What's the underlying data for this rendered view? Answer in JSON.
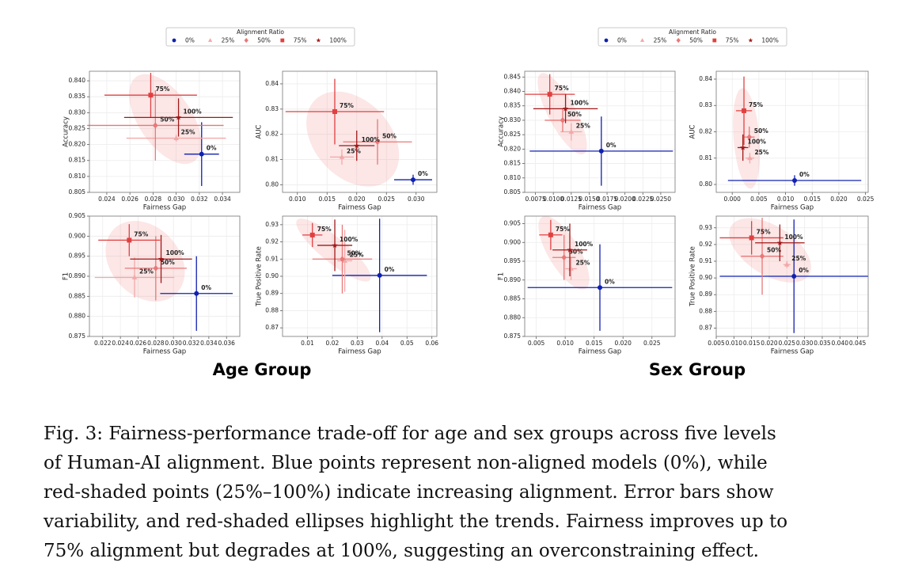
{
  "chart_data": [
    {
      "type": "scatter",
      "xlabel": "Fairness Gap",
      "ylabel": "Accuracy",
      "xlim": [
        0.0225,
        0.0355
      ],
      "xticks": [
        0.024,
        0.026,
        0.028,
        {
          "value": 0.03,
          "label": "0.030"
        },
        0.032,
        0.034
      ],
      "ylim": [
        0.805,
        0.843
      ],
      "yticks": [
        0.805,
        {
          "value": 0.81,
          "label": "0.810"
        },
        0.815,
        {
          "value": 0.82,
          "label": "0.820"
        },
        0.825,
        {
          "value": 0.83,
          "label": "0.830"
        },
        0.835,
        {
          "value": 0.84,
          "label": "0.840"
        }
      ],
      "grid": true,
      "series": [
        {
          "name": "0%",
          "color": "#1020b0",
          "marker": "circle",
          "x": [
            0.0322
          ],
          "values": [
            0.817
          ],
          "xerr": [
            0.0015
          ],
          "yerr": [
            0.01
          ]
        },
        {
          "name": "25%",
          "color": "#f2a8a8",
          "marker": "triangle",
          "x": [
            0.03
          ],
          "values": [
            0.822
          ],
          "xerr": [
            0.0043
          ],
          "yerr": [
            0.001
          ]
        },
        {
          "name": "50%",
          "color": "#e87878",
          "marker": "diamond",
          "x": [
            0.0282
          ],
          "values": [
            0.826
          ],
          "xerr": [
            0.0059
          ],
          "yerr": [
            0.011
          ]
        },
        {
          "name": "75%",
          "color": "#e04040",
          "marker": "square",
          "x": [
            0.0278
          ],
          "values": [
            0.8355
          ],
          "xerr": [
            0.004
          ],
          "yerr": [
            0.007
          ]
        },
        {
          "name": "100%",
          "color": "#a01818",
          "marker": "star",
          "x": [
            0.0302
          ],
          "values": [
            0.8285
          ],
          "xerr": [
            0.0047
          ],
          "yerr": [
            0.006
          ]
        }
      ]
    },
    {
      "type": "scatter",
      "xlabel": "Fairness Gap",
      "ylabel": "AUC",
      "xlim": [
        0.0075,
        0.0335
      ],
      "xticks": [
        {
          "value": 0.01,
          "label": "0.010"
        },
        0.015,
        {
          "value": 0.02,
          "label": "0.020"
        },
        0.025,
        {
          "value": 0.03,
          "label": "0.030"
        }
      ],
      "ylim": [
        0.797,
        0.845
      ],
      "yticks": [
        {
          "value": 0.8,
          "label": "0.80"
        },
        0.81,
        0.82,
        0.83,
        0.84
      ],
      "grid": true,
      "series": [
        {
          "name": "0%",
          "color": "#1020b0",
          "marker": "circle",
          "x": [
            0.0295
          ],
          "values": [
            0.802
          ],
          "xerr": [
            0.0032
          ],
          "yerr": [
            0.002
          ]
        },
        {
          "name": "25%",
          "color": "#f2a8a8",
          "marker": "triangle",
          "x": [
            0.0175
          ],
          "values": [
            0.811
          ],
          "xerr": [
            0.002
          ],
          "yerr": [
            0.003
          ]
        },
        {
          "name": "50%",
          "color": "#e87878",
          "marker": "diamond",
          "x": [
            0.0235
          ],
          "values": [
            0.817
          ],
          "xerr": [
            0.0058
          ],
          "yerr": [
            0.009
          ]
        },
        {
          "name": "75%",
          "color": "#e04040",
          "marker": "square",
          "x": [
            0.0163
          ],
          "values": [
            0.829
          ],
          "xerr": [
            0.0083
          ],
          "yerr": [
            0.013
          ]
        },
        {
          "name": "100%",
          "color": "#a01818",
          "marker": "star",
          "x": [
            0.02
          ],
          "values": [
            0.8155
          ],
          "xerr": [
            0.003
          ],
          "yerr": [
            0.006
          ]
        }
      ]
    },
    {
      "type": "scatter",
      "xlabel": "Fairness Gap",
      "ylabel": "F1",
      "xlim": [
        0.0205,
        0.0375
      ],
      "xticks": [
        0.022,
        0.024,
        0.026,
        0.028,
        {
          "value": 0.03,
          "label": "0.030"
        },
        0.032,
        0.034,
        0.036
      ],
      "ylim": [
        0.875,
        0.905
      ],
      "yticks": [
        0.875,
        {
          "value": 0.88,
          "label": "0.880"
        },
        0.885,
        {
          "value": 0.89,
          "label": "0.890"
        },
        0.895,
        {
          "value": 0.9,
          "label": "0.900"
        },
        0.905
      ],
      "grid": true,
      "series": [
        {
          "name": "0%",
          "color": "#1020b0",
          "marker": "circle",
          "x": [
            0.0326
          ],
          "values": [
            0.8857
          ],
          "xerr": [
            0.0041
          ],
          "yerr": [
            0.0093
          ]
        },
        {
          "name": "25%",
          "color": "#f2a8a8",
          "marker": "triangle",
          "x": [
            0.0256
          ],
          "values": [
            0.8897
          ],
          "xerr": [
            0.0045
          ],
          "yerr": [
            0.005
          ]
        },
        {
          "name": "50%",
          "color": "#e87878",
          "marker": "diamond",
          "x": [
            0.028
          ],
          "values": [
            0.892
          ],
          "xerr": [
            0.0035
          ],
          "yerr": [
            0.008
          ]
        },
        {
          "name": "75%",
          "color": "#e04040",
          "marker": "square",
          "x": [
            0.025
          ],
          "values": [
            0.899
          ],
          "xerr": [
            0.0035
          ],
          "yerr": [
            0.004
          ]
        },
        {
          "name": "100%",
          "color": "#a01818",
          "marker": "star",
          "x": [
            0.0286
          ],
          "values": [
            0.8943
          ],
          "xerr": [
            0.0035
          ],
          "yerr": [
            0.006
          ]
        }
      ]
    },
    {
      "type": "scatter",
      "xlabel": "Fairness Gap",
      "ylabel": "True Positive Rate",
      "xlim": [
        0.0,
        0.062
      ],
      "xticks": [
        0.01,
        0.02,
        0.03,
        0.04,
        0.05,
        0.06
      ],
      "ylim": [
        0.865,
        0.935
      ],
      "yticks": [
        0.87,
        0.88,
        0.89,
        {
          "value": 0.9,
          "label": "0.90"
        },
        0.91,
        0.92,
        0.93
      ],
      "grid": true,
      "series": [
        {
          "name": "0%",
          "color": "#1020b0",
          "marker": "circle",
          "x": [
            0.039
          ],
          "values": [
            0.9005
          ],
          "xerr": [
            0.019
          ],
          "yerr": [
            0.033
          ]
        },
        {
          "name": "25%",
          "color": "#f2a8a8",
          "marker": "triangle",
          "x": [
            0.025
          ],
          "values": [
            0.909
          ],
          "xerr": [
            0.003
          ],
          "yerr": [
            0.018
          ]
        },
        {
          "name": "50%",
          "color": "#e87878",
          "marker": "diamond",
          "x": [
            0.024
          ],
          "values": [
            0.91
          ],
          "xerr": [
            0.012
          ],
          "yerr": [
            0.02
          ]
        },
        {
          "name": "75%",
          "color": "#e04040",
          "marker": "square",
          "x": [
            0.012
          ],
          "values": [
            0.924
          ],
          "xerr": [
            0.004
          ],
          "yerr": [
            0.007
          ]
        },
        {
          "name": "100%",
          "color": "#a01818",
          "marker": "star",
          "x": [
            0.021
          ],
          "values": [
            0.918
          ],
          "xerr": [
            0.007
          ],
          "yerr": [
            0.015
          ]
        }
      ]
    },
    {
      "type": "scatter",
      "xlabel": "Fairness Gap",
      "ylabel": "Accuracy",
      "xlim": [
        0.006,
        0.027
      ],
      "xticks": [
        0.0075,
        {
          "value": 0.01,
          "label": "0.0100"
        },
        0.0125,
        {
          "value": 0.015,
          "label": "0.0150"
        },
        0.0175,
        {
          "value": 0.02,
          "label": "0.0200"
        },
        0.0225,
        {
          "value": 0.025,
          "label": "0.0250"
        }
      ],
      "ylim": [
        0.805,
        0.847
      ],
      "yticks": [
        0.805,
        {
          "value": 0.81,
          "label": "0.810"
        },
        0.815,
        {
          "value": 0.82,
          "label": "0.820"
        },
        0.825,
        {
          "value": 0.83,
          "label": "0.830"
        },
        0.835,
        {
          "value": 0.84,
          "label": "0.840"
        },
        0.845
      ],
      "grid": true,
      "series": [
        {
          "name": "0%",
          "color": "#1020b0",
          "marker": "circle",
          "x": [
            0.0167
          ],
          "values": [
            0.8193
          ],
          "xerr": [
            0.01
          ],
          "yerr": [
            0.012
          ]
        },
        {
          "name": "25%",
          "color": "#f2a8a8",
          "marker": "triangle",
          "x": [
            0.0125
          ],
          "values": [
            0.826
          ],
          "xerr": [
            0.0015
          ],
          "yerr": [
            0.003
          ]
        },
        {
          "name": "50%",
          "color": "#e87878",
          "marker": "diamond",
          "x": [
            0.0113
          ],
          "values": [
            0.83
          ],
          "xerr": [
            0.0025
          ],
          "yerr": [
            0.004
          ]
        },
        {
          "name": "75%",
          "color": "#e04040",
          "marker": "square",
          "x": [
            0.0095
          ],
          "values": [
            0.839
          ],
          "xerr": [
            0.0035
          ],
          "yerr": [
            0.007
          ]
        },
        {
          "name": "100%",
          "color": "#a01818",
          "marker": "star",
          "x": [
            0.0117
          ],
          "values": [
            0.834
          ],
          "xerr": [
            0.0045
          ],
          "yerr": [
            0.005
          ]
        }
      ]
    },
    {
      "type": "scatter",
      "xlabel": "Fairness Gap",
      "ylabel": "AUC",
      "xlim": [
        -0.003,
        0.0255
      ],
      "xticks": [
        {
          "value": 0,
          "label": "0.000"
        },
        0.005,
        {
          "value": 0.01,
          "label": "0.010"
        },
        0.015,
        {
          "value": 0.02,
          "label": "0.020"
        },
        0.025
      ],
      "ylim": [
        0.797,
        0.843
      ],
      "yticks": [
        {
          "value": 0.8,
          "label": "0.80"
        },
        0.81,
        0.82,
        0.83,
        0.84
      ],
      "grid": true,
      "series": [
        {
          "name": "0%",
          "color": "#1020b0",
          "marker": "circle",
          "x": [
            0.0117
          ],
          "values": [
            0.8015
          ],
          "xerr": [
            0.0125
          ],
          "yerr": [
            0.002
          ]
        },
        {
          "name": "25%",
          "color": "#f2a8a8",
          "marker": "triangle",
          "x": [
            0.0033
          ],
          "values": [
            0.81
          ],
          "xerr": [
            0.0008
          ],
          "yerr": [
            0.002
          ]
        },
        {
          "name": "50%",
          "color": "#e87878",
          "marker": "diamond",
          "x": [
            0.0032
          ],
          "values": [
            0.818
          ],
          "xerr": [
            0.001
          ],
          "yerr": [
            0.004
          ]
        },
        {
          "name": "75%",
          "color": "#e04040",
          "marker": "square",
          "x": [
            0.0022
          ],
          "values": [
            0.828
          ],
          "xerr": [
            0.0015
          ],
          "yerr": [
            0.013
          ]
        },
        {
          "name": "100%",
          "color": "#a01818",
          "marker": "star",
          "x": [
            0.002
          ],
          "values": [
            0.814
          ],
          "xerr": [
            0.001
          ],
          "yerr": [
            0.005
          ]
        }
      ]
    },
    {
      "type": "scatter",
      "xlabel": "Fairness Gap",
      "ylabel": "F1",
      "xlim": [
        0.003,
        0.029
      ],
      "xticks": [
        0.005,
        {
          "value": 0.01,
          "label": "0.010"
        },
        0.015,
        {
          "value": 0.02,
          "label": "0.020"
        },
        0.025
      ],
      "ylim": [
        0.875,
        0.907
      ],
      "yticks": [
        0.875,
        {
          "value": 0.88,
          "label": "0.880"
        },
        0.885,
        {
          "value": 0.89,
          "label": "0.890"
        },
        0.895,
        {
          "value": 0.9,
          "label": "0.900"
        },
        0.905
      ],
      "grid": true,
      "series": [
        {
          "name": "0%",
          "color": "#1020b0",
          "marker": "circle",
          "x": [
            0.016
          ],
          "values": [
            0.888
          ],
          "xerr": [
            0.0125
          ],
          "yerr": [
            0.0115
          ]
        },
        {
          "name": "25%",
          "color": "#f2a8a8",
          "marker": "triangle",
          "x": [
            0.011
          ],
          "values": [
            0.893
          ],
          "xerr": [
            0.001
          ],
          "yerr": [
            0.003
          ]
        },
        {
          "name": "50%",
          "color": "#e87878",
          "marker": "diamond",
          "x": [
            0.0098
          ],
          "values": [
            0.896
          ],
          "xerr": [
            0.002
          ],
          "yerr": [
            0.006
          ]
        },
        {
          "name": "75%",
          "color": "#e04040",
          "marker": "square",
          "x": [
            0.0075
          ],
          "values": [
            0.902
          ],
          "xerr": [
            0.002
          ],
          "yerr": [
            0.004
          ]
        },
        {
          "name": "100%",
          "color": "#a01818",
          "marker": "star",
          "x": [
            0.0108
          ],
          "values": [
            0.898
          ],
          "xerr": [
            0.003
          ],
          "yerr": [
            0.007
          ]
        }
      ]
    },
    {
      "type": "scatter",
      "xlabel": "Fairness Gap",
      "ylabel": "True Positive Rate",
      "xlim": [
        0.005,
        0.048
      ],
      "xticks": [
        0.005,
        {
          "value": 0.01,
          "label": "0.010"
        },
        0.015,
        {
          "value": 0.02,
          "label": "0.020"
        },
        0.025,
        {
          "value": 0.03,
          "label": "0.030"
        },
        0.035,
        {
          "value": 0.04,
          "label": "0.040"
        },
        0.045
      ],
      "ylim": [
        0.865,
        0.937
      ],
      "yticks": [
        0.87,
        0.88,
        0.89,
        {
          "value": 0.9,
          "label": "0.90"
        },
        0.91,
        0.92,
        0.93
      ],
      "grid": true,
      "series": [
        {
          "name": "0%",
          "color": "#1020b0",
          "marker": "circle",
          "x": [
            0.027
          ],
          "values": [
            0.901
          ],
          "xerr": [
            0.021
          ],
          "yerr": [
            0.034
          ]
        },
        {
          "name": "25%",
          "color": "#f2a8a8",
          "marker": "triangle",
          "x": [
            0.025
          ],
          "values": [
            0.908
          ],
          "xerr": [
            0.001
          ],
          "yerr": [
            0.002
          ]
        },
        {
          "name": "50%",
          "color": "#e87878",
          "marker": "diamond",
          "x": [
            0.018
          ],
          "values": [
            0.913
          ],
          "xerr": [
            0.006
          ],
          "yerr": [
            0.023
          ]
        },
        {
          "name": "75%",
          "color": "#e04040",
          "marker": "square",
          "x": [
            0.015
          ],
          "values": [
            0.924
          ],
          "xerr": [
            0.009
          ],
          "yerr": [
            0.01
          ]
        },
        {
          "name": "100%",
          "color": "#a01818",
          "marker": "star",
          "x": [
            0.023
          ],
          "values": [
            0.921
          ],
          "xerr": [
            0.007
          ],
          "yerr": [
            0.011
          ]
        }
      ]
    }
  ],
  "groups": [
    {
      "label": "Age Group",
      "legend_title": "Alignment Ratio"
    },
    {
      "label": "Sex Group",
      "legend_title": "Alignment Ratio"
    }
  ],
  "caption": [
    "Fig. 3: Fairness-performance trade-off for age and sex groups across five levels",
    "of Human-AI alignment. Blue points represent non-aligned models (0%), while",
    "red-shaded points (25%–100%) indicate increasing alignment. Error bars show",
    "variability, and red-shaded ellipses highlight the trends. Fairness improves up to",
    "75% alignment but degrades at 100%, suggesting an overconstraining effect."
  ]
}
